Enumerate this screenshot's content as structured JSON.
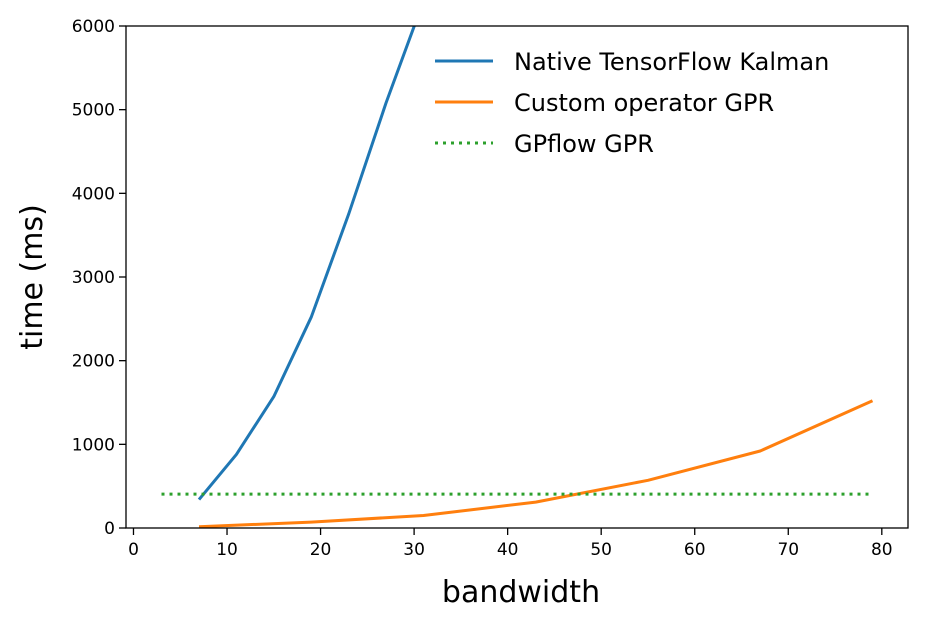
{
  "chart_data": {
    "type": "line",
    "title": "",
    "xlabel": "bandwidth",
    "ylabel": "time (ms)",
    "xlim": [
      -0.8,
      82.8
    ],
    "ylim": [
      0,
      6000
    ],
    "xticks": [
      0,
      10,
      20,
      30,
      40,
      50,
      60,
      70,
      80
    ],
    "yticks": [
      0,
      1000,
      2000,
      3000,
      4000,
      5000,
      6000
    ],
    "grid": false,
    "legend_position": "upper right",
    "series": [
      {
        "name": "Native TensorFlow Kalman",
        "color": "#1f77b4",
        "style": "solid",
        "x": [
          7,
          11,
          15,
          19,
          23,
          27,
          31
        ],
        "y": [
          340,
          880,
          1570,
          2520,
          3750,
          5080,
          6300
        ]
      },
      {
        "name": "Custom operator GPR",
        "color": "#ff7f0e",
        "style": "solid",
        "x": [
          7,
          19,
          31,
          43,
          55,
          67,
          79
        ],
        "y": [
          15,
          70,
          150,
          310,
          570,
          920,
          1520
        ]
      },
      {
        "name": "GPflow GPR",
        "color": "#2ca02c",
        "style": "dotted",
        "x": [
          3,
          79
        ],
        "y": [
          405,
          405
        ]
      }
    ]
  }
}
